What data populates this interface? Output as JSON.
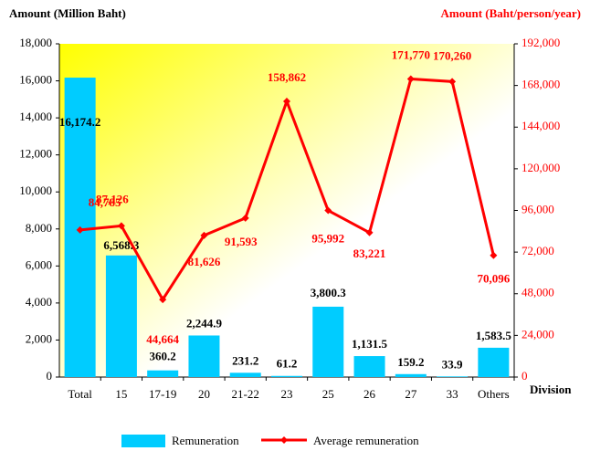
{
  "chart_data": {
    "type": "bar_line",
    "y_label": "Amount  (Million Baht)",
    "y2_label": "Amount  (Baht/person/year)",
    "x_label": "Division",
    "categories": [
      "Total",
      "15",
      "17-19",
      "20",
      "21-22",
      "23",
      "25",
      "26",
      "27",
      "33",
      "Others"
    ],
    "series": [
      {
        "name": "Remuneration",
        "type": "bar",
        "color": "#00ccff",
        "values": [
          16174.2,
          6568.3,
          360.2,
          2244.9,
          231.2,
          61.2,
          3800.3,
          1131.5,
          159.2,
          33.9,
          1583.5
        ],
        "value_labels": [
          "16,174.2",
          "6,568.3",
          "360.2",
          "2,244.9",
          "231.2",
          "61.2",
          "3,800.3",
          "1,131.5",
          "159.2",
          "33.9",
          "1,583.5"
        ]
      },
      {
        "name": "Average remuneration",
        "type": "line",
        "axis": "y2",
        "color": "#ff0000",
        "values": [
          84785,
          87126,
          44664,
          81626,
          91593,
          158862,
          95992,
          83221,
          171770,
          170260,
          70096
        ],
        "value_labels": [
          "84,785",
          "87,126",
          "44,664",
          "81,626",
          "91,593",
          "158,862",
          "95,992",
          "83,221",
          "171,770",
          "170,260",
          "70,096"
        ]
      }
    ],
    "ylim": [
      0,
      18000
    ],
    "yticks": [
      0,
      {
        "value": 2000,
        "label": "2,000"
      },
      {
        "value": 4000,
        "label": "4,000"
      },
      {
        "value": 6000,
        "label": "6,000"
      },
      {
        "value": 8000,
        "label": "8,000"
      },
      {
        "value": 10000,
        "label": "10,000"
      },
      {
        "value": 12000,
        "label": "12,000"
      },
      {
        "value": 14000,
        "label": "14,000"
      },
      {
        "value": 16000,
        "label": "16,000"
      },
      {
        "value": 18000,
        "label": "18,000"
      }
    ],
    "y2lim": [
      0,
      192000
    ],
    "y2ticks": [
      0,
      {
        "value": 24000,
        "label": "24,000"
      },
      {
        "value": 48000,
        "label": "48,000"
      },
      {
        "value": 72000,
        "label": "72,000"
      },
      {
        "value": 96000,
        "label": "96,000"
      },
      {
        "value": 120000,
        "label": "120,000"
      },
      {
        "value": 144000,
        "label": "144,000"
      },
      {
        "value": 168000,
        "label": "168,000"
      },
      {
        "value": 192000,
        "label": "192,000"
      }
    ]
  }
}
